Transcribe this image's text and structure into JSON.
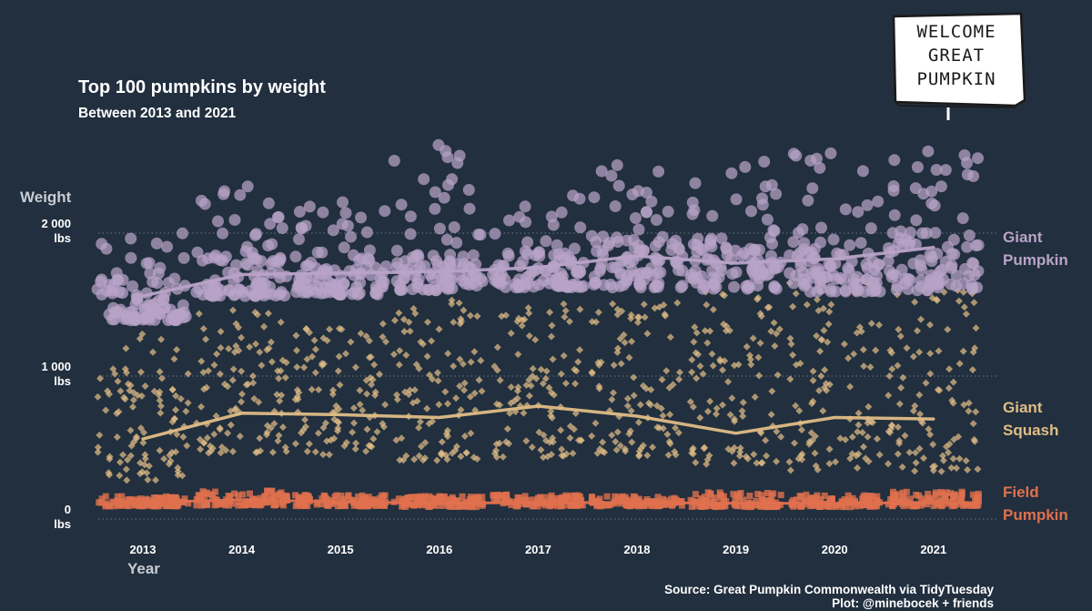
{
  "chart_data": {
    "type": "scatter",
    "title": "Top 100 pumpkins by weight",
    "subtitle": "Between 2013 and 2021",
    "ylabel": "Weight",
    "xlabel": "Year",
    "categories": [
      "2013",
      "2014",
      "2015",
      "2016",
      "2017",
      "2018",
      "2019",
      "2020",
      "2021"
    ],
    "y_ticks": [
      {
        "value": 0,
        "label": "0",
        "unit": "lbs"
      },
      {
        "value": 1000,
        "label": "1 000",
        "unit": "lbs"
      },
      {
        "value": 2000,
        "label": "2 000",
        "unit": "lbs"
      }
    ],
    "ylim": [
      0,
      2500
    ],
    "grid": "horizontal dotted at y ticks",
    "series": [
      {
        "name": "Giant Pumpkin",
        "label_lines": [
          "Giant",
          "Pumpkin"
        ],
        "marker": "circle",
        "color": "#b9a3c8",
        "trend": [
          1560,
          1710,
          1720,
          1730,
          1760,
          1840,
          1790,
          1820,
          1900
        ],
        "range": [
          [
            1390,
            2030
          ],
          [
            1560,
            2340
          ],
          [
            1570,
            2220
          ],
          [
            1600,
            2620
          ],
          [
            1620,
            2280
          ],
          [
            1620,
            2510
          ],
          [
            1610,
            2540
          ],
          [
            1590,
            2600
          ],
          [
            1600,
            2700
          ]
        ]
      },
      {
        "name": "Giant Squash",
        "label_lines": [
          "Giant",
          "Squash"
        ],
        "marker": "diamond",
        "color": "#e0bd86",
        "trend": [
          560,
          740,
          730,
          710,
          790,
          720,
          600,
          710,
          700
        ],
        "range": [
          [
            270,
            1300
          ],
          [
            460,
            1470
          ],
          [
            450,
            1380
          ],
          [
            410,
            1560
          ],
          [
            430,
            1510
          ],
          [
            440,
            1560
          ],
          [
            380,
            1590
          ],
          [
            340,
            1680
          ],
          [
            330,
            1640
          ]
        ]
      },
      {
        "name": "Field Pumpkin",
        "label_lines": [
          "Field",
          "Pumpkin"
        ],
        "marker": "square",
        "color": "#e0704e",
        "trend": [
          115,
          135,
          120,
          110,
          115,
          115,
          110,
          110,
          115
        ],
        "range": [
          [
            90,
            160
          ],
          [
            95,
            200
          ],
          [
            90,
            170
          ],
          [
            85,
            160
          ],
          [
            90,
            170
          ],
          [
            90,
            160
          ],
          [
            85,
            190
          ],
          [
            85,
            170
          ],
          [
            90,
            190
          ]
        ]
      }
    ],
    "legend": "direct labels at right"
  },
  "caption": {
    "line1": "Source: Great Pumpkin Commonwealth via TidyTuesday",
    "line2": "Plot: @minebocek + friends"
  },
  "sign": {
    "lines": [
      "WELCOME",
      "GREAT",
      "PUMPKIN"
    ]
  }
}
